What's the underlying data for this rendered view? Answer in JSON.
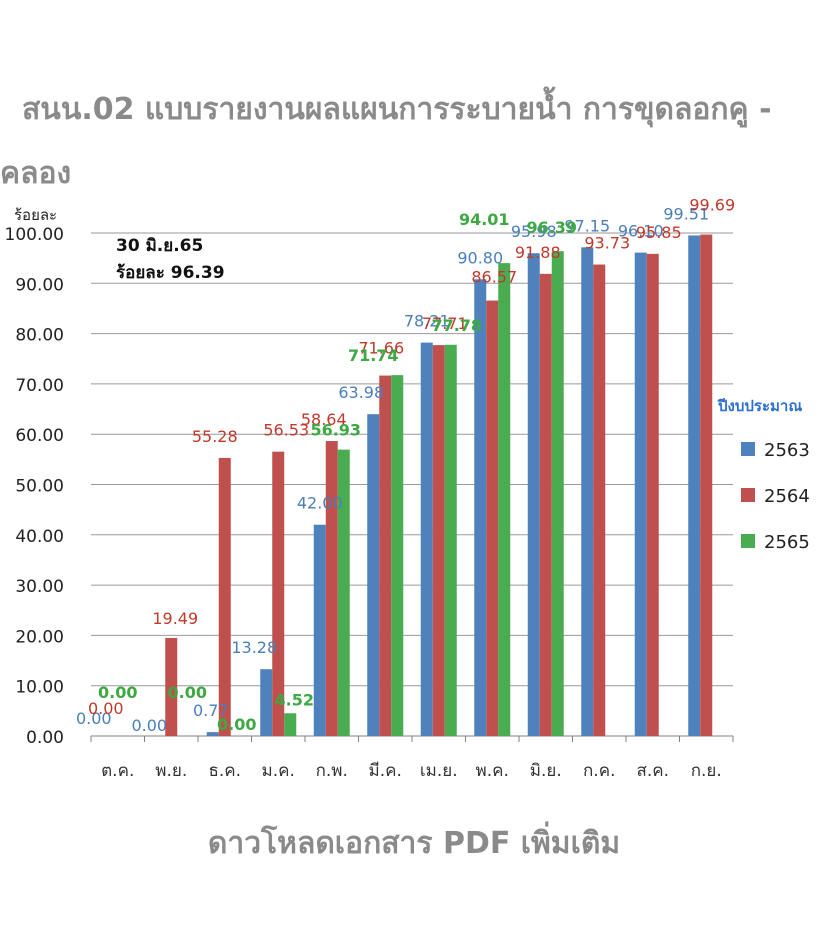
{
  "page": {
    "title_line1": "สนน.02 แบบรายงานผลแผนการระบายน้ำ การขุดลอกคู -",
    "title_line2": "คลอง",
    "download_link": "ดาวโหลดเอกสาร PDF เพิ่มเติม"
  },
  "chart_data": {
    "type": "bar",
    "ylabel": "ร้อยละ",
    "ylim": [
      0,
      100
    ],
    "y_ticks": [
      "0.00",
      "10.00",
      "20.00",
      "30.00",
      "40.00",
      "50.00",
      "60.00",
      "70.00",
      "80.00",
      "90.00",
      "100.00"
    ],
    "categories": [
      "ต.ค.",
      "พ.ย.",
      "ธ.ค.",
      "ม.ค.",
      "ก.พ.",
      "มี.ค.",
      "เม.ย.",
      "พ.ค.",
      "มิ.ย.",
      "ก.ค.",
      "ส.ค.",
      "ก.ย."
    ],
    "legend_title": "ปีงบประมาณ",
    "legend_position": "right",
    "annotation": [
      "30 มิ.ย.65",
      "ร้อยละ 96.39"
    ],
    "series": [
      {
        "name": "2563",
        "color": "#4f81bd",
        "values": [
          0.0,
          0.0,
          0.77,
          13.28,
          42.0,
          63.98,
          78.21,
          90.8,
          95.98,
          97.15,
          96.1,
          99.51
        ],
        "labels": [
          "0.00",
          "0.00",
          "0.77",
          "13.28",
          "42.00",
          "63.98",
          "78.21",
          "90.80",
          "95.98",
          "97.15",
          "96.10",
          "99.51"
        ]
      },
      {
        "name": "2564",
        "color": "#c0504d",
        "values": [
          0.0,
          19.49,
          55.28,
          56.53,
          58.64,
          71.66,
          77.71,
          86.57,
          91.88,
          93.73,
          95.85,
          99.69
        ],
        "labels": [
          "0.00",
          "19.49",
          "55.28",
          "56.53",
          "58.64",
          "71.66",
          "77.71",
          "86.57",
          "91.88",
          "93.73",
          "95.85",
          "99.69"
        ]
      },
      {
        "name": "2565",
        "color": "#4aac50",
        "values": [
          0.0,
          0.0,
          0.0,
          4.52,
          56.93,
          71.74,
          77.78,
          94.01,
          96.39,
          null,
          null,
          null
        ],
        "labels": [
          "0.00",
          "0.00",
          "0.00",
          "4.52",
          "56.93",
          "71.74",
          "77.78",
          "94.01",
          "96.39",
          null,
          null,
          null
        ]
      }
    ]
  }
}
